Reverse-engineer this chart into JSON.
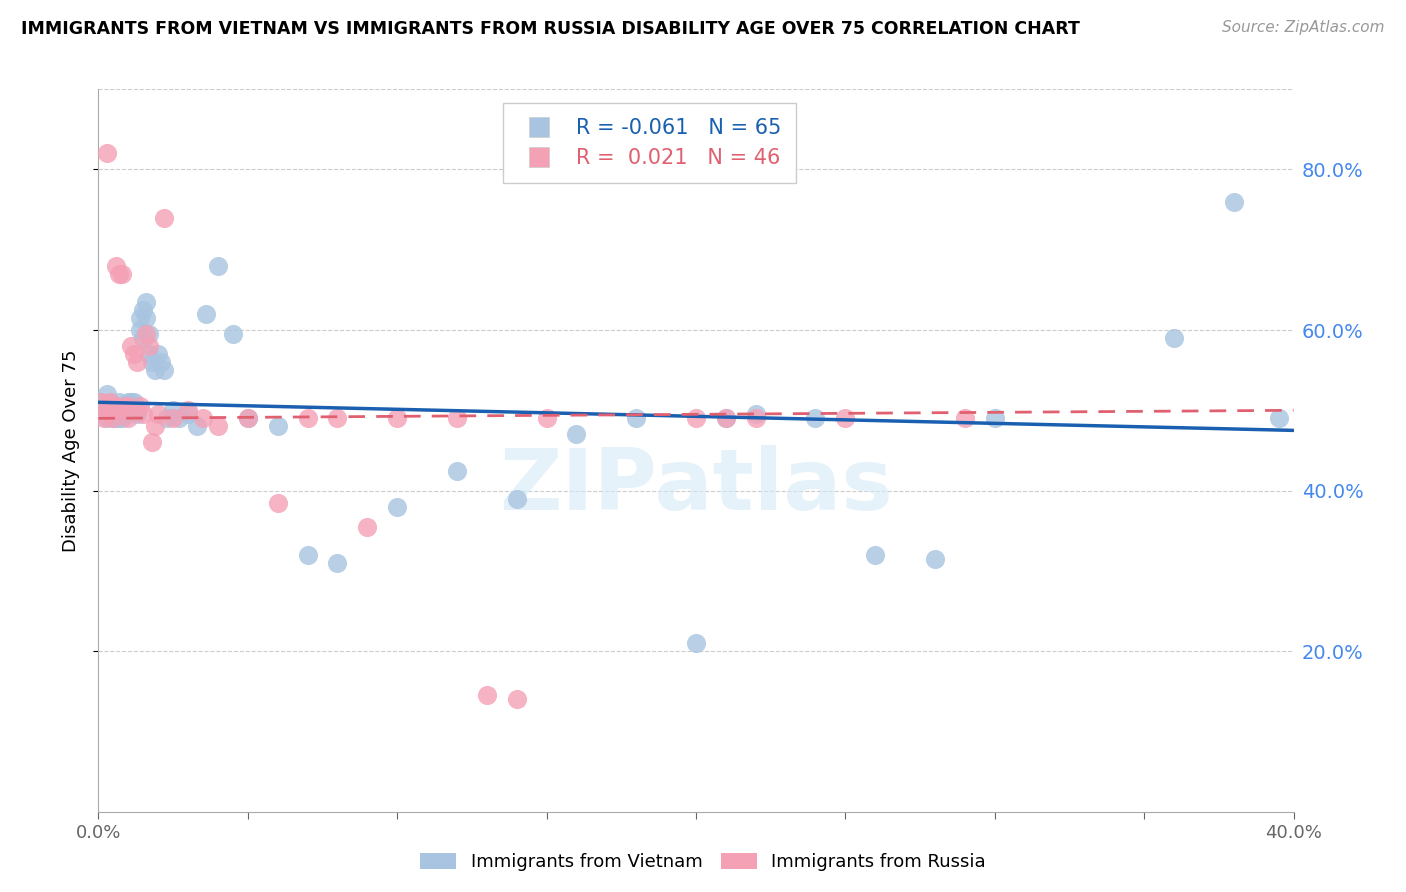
{
  "title": "IMMIGRANTS FROM VIETNAM VS IMMIGRANTS FROM RUSSIA DISABILITY AGE OVER 75 CORRELATION CHART",
  "source_text": "Source: ZipAtlas.com",
  "ylabel": "Disability Age Over 75",
  "legend_label1": "Immigrants from Vietnam",
  "legend_label2": "Immigrants from Russia",
  "R1": -0.061,
  "N1": 65,
  "R2": 0.021,
  "N2": 46,
  "color1": "#a8c4e0",
  "color2": "#f4a0b5",
  "line_color1": "#1a5fb0",
  "line_color2": "#e06070",
  "xmin": 0.0,
  "xmax": 0.4,
  "ymin": 0.0,
  "ymax": 0.9,
  "yticks_right": [
    0.2,
    0.4,
    0.6,
    0.8
  ],
  "xtick_vals": [
    0.0,
    0.05,
    0.1,
    0.15,
    0.2,
    0.25,
    0.3,
    0.35,
    0.4
  ],
  "scatter1_x": [
    0.001,
    0.002,
    0.003,
    0.003,
    0.004,
    0.004,
    0.005,
    0.005,
    0.006,
    0.006,
    0.007,
    0.007,
    0.008,
    0.008,
    0.009,
    0.009,
    0.01,
    0.01,
    0.01,
    0.011,
    0.011,
    0.012,
    0.012,
    0.013,
    0.013,
    0.014,
    0.014,
    0.015,
    0.015,
    0.016,
    0.016,
    0.017,
    0.017,
    0.018,
    0.019,
    0.02,
    0.021,
    0.022,
    0.023,
    0.025,
    0.027,
    0.03,
    0.033,
    0.036,
    0.04,
    0.045,
    0.05,
    0.06,
    0.07,
    0.08,
    0.1,
    0.12,
    0.14,
    0.16,
    0.18,
    0.2,
    0.21,
    0.22,
    0.24,
    0.26,
    0.28,
    0.3,
    0.36,
    0.38,
    0.395
  ],
  "scatter1_y": [
    0.51,
    0.505,
    0.49,
    0.52,
    0.5,
    0.51,
    0.49,
    0.505,
    0.49,
    0.505,
    0.49,
    0.51,
    0.5,
    0.49,
    0.505,
    0.495,
    0.505,
    0.495,
    0.51,
    0.505,
    0.51,
    0.5,
    0.51,
    0.5,
    0.495,
    0.6,
    0.615,
    0.59,
    0.625,
    0.635,
    0.615,
    0.595,
    0.57,
    0.56,
    0.55,
    0.57,
    0.56,
    0.55,
    0.49,
    0.5,
    0.49,
    0.495,
    0.48,
    0.62,
    0.68,
    0.595,
    0.49,
    0.48,
    0.32,
    0.31,
    0.38,
    0.425,
    0.39,
    0.47,
    0.49,
    0.21,
    0.49,
    0.495,
    0.49,
    0.32,
    0.315,
    0.49,
    0.59,
    0.76,
    0.49
  ],
  "scatter2_x": [
    0.001,
    0.002,
    0.003,
    0.003,
    0.004,
    0.004,
    0.005,
    0.005,
    0.006,
    0.006,
    0.007,
    0.007,
    0.008,
    0.009,
    0.01,
    0.01,
    0.011,
    0.012,
    0.013,
    0.014,
    0.015,
    0.016,
    0.017,
    0.018,
    0.019,
    0.02,
    0.022,
    0.025,
    0.03,
    0.035,
    0.04,
    0.05,
    0.06,
    0.07,
    0.08,
    0.09,
    0.1,
    0.12,
    0.13,
    0.14,
    0.15,
    0.2,
    0.21,
    0.22,
    0.25,
    0.29
  ],
  "scatter2_y": [
    0.51,
    0.49,
    0.82,
    0.5,
    0.505,
    0.51,
    0.49,
    0.505,
    0.68,
    0.505,
    0.67,
    0.5,
    0.67,
    0.505,
    0.505,
    0.49,
    0.58,
    0.57,
    0.56,
    0.505,
    0.495,
    0.595,
    0.58,
    0.46,
    0.48,
    0.495,
    0.74,
    0.49,
    0.5,
    0.49,
    0.48,
    0.49,
    0.385,
    0.49,
    0.49,
    0.355,
    0.49,
    0.49,
    0.145,
    0.14,
    0.49,
    0.49,
    0.49,
    0.49,
    0.49,
    0.49
  ],
  "trendline1_x0": 0.0,
  "trendline1_x1": 0.4,
  "trendline1_y0": 0.51,
  "trendline1_y1": 0.475,
  "trendline2_x0": 0.0,
  "trendline2_x1": 0.4,
  "trendline2_y0": 0.49,
  "trendline2_y1": 0.5
}
